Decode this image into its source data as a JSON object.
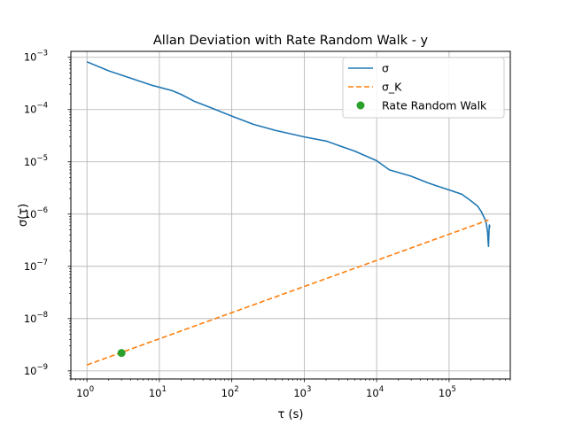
{
  "chart_data": {
    "type": "line",
    "title": "Allan Deviation with Rate Random Walk - y",
    "xlabel": "τ (s)",
    "ylabel": "σ(τ)",
    "xscale": "log",
    "yscale": "log",
    "xlim": [
      0.6,
      700000
    ],
    "ylim": [
      7e-10,
      0.0013
    ],
    "grid": true,
    "legend_position": "top-right",
    "x_ticks": [
      {
        "value": 1,
        "base": "10",
        "exp": "0"
      },
      {
        "value": 10,
        "base": "10",
        "exp": "1"
      },
      {
        "value": 100,
        "base": "10",
        "exp": "2"
      },
      {
        "value": 1000,
        "base": "10",
        "exp": "3"
      },
      {
        "value": 10000,
        "base": "10",
        "exp": "4"
      },
      {
        "value": 100000,
        "base": "10",
        "exp": "5"
      }
    ],
    "y_ticks": [
      {
        "value": 1e-09,
        "base": "10",
        "exp": "−9"
      },
      {
        "value": 1e-08,
        "base": "10",
        "exp": "−8"
      },
      {
        "value": 1e-07,
        "base": "10",
        "exp": "−7"
      },
      {
        "value": 1e-06,
        "base": "10",
        "exp": "−6"
      },
      {
        "value": 1e-05,
        "base": "10",
        "exp": "−5"
      },
      {
        "value": 0.0001,
        "base": "10",
        "exp": "−4"
      },
      {
        "value": 0.001,
        "base": "10",
        "exp": "−3"
      }
    ],
    "series": [
      {
        "name": "σ",
        "style": "solid",
        "color": "#1f77b4",
        "x": [
          1,
          2,
          4,
          8,
          15,
          20,
          30,
          50,
          100,
          200,
          400,
          1000,
          2000,
          5000,
          10000,
          15000,
          30000,
          50000,
          70000,
          100000,
          150000,
          200000,
          250000,
          280000,
          300000,
          320000,
          330000,
          340000,
          345000,
          350000,
          355000,
          360000,
          365000
        ],
        "y": [
          0.00082,
          0.00055,
          0.0004,
          0.00029,
          0.00023,
          0.000195,
          0.000145,
          0.00011,
          7.5e-05,
          5.2e-05,
          4e-05,
          3e-05,
          2.5e-05,
          1.6e-05,
          1.05e-05,
          7e-06,
          5.3e-06,
          4e-06,
          3.4e-06,
          2.9e-06,
          2.4e-06,
          1.8e-06,
          1.4e-06,
          1.1e-06,
          9e-07,
          7.5e-07,
          6e-07,
          4.5e-07,
          3.2e-07,
          2.4e-07,
          4.5e-07,
          6.2e-07,
          5.5e-07
        ]
      },
      {
        "name": "σ_K",
        "style": "dashed",
        "color": "#ff7f0e",
        "x": [
          1,
          350000
        ],
        "y": [
          1.3e-09,
          7.7e-07
        ]
      },
      {
        "name": "Rate Random Walk",
        "style": "marker",
        "color": "#2ca02c",
        "x": [
          3.0
        ],
        "y": [
          2.2e-09
        ]
      }
    ]
  }
}
